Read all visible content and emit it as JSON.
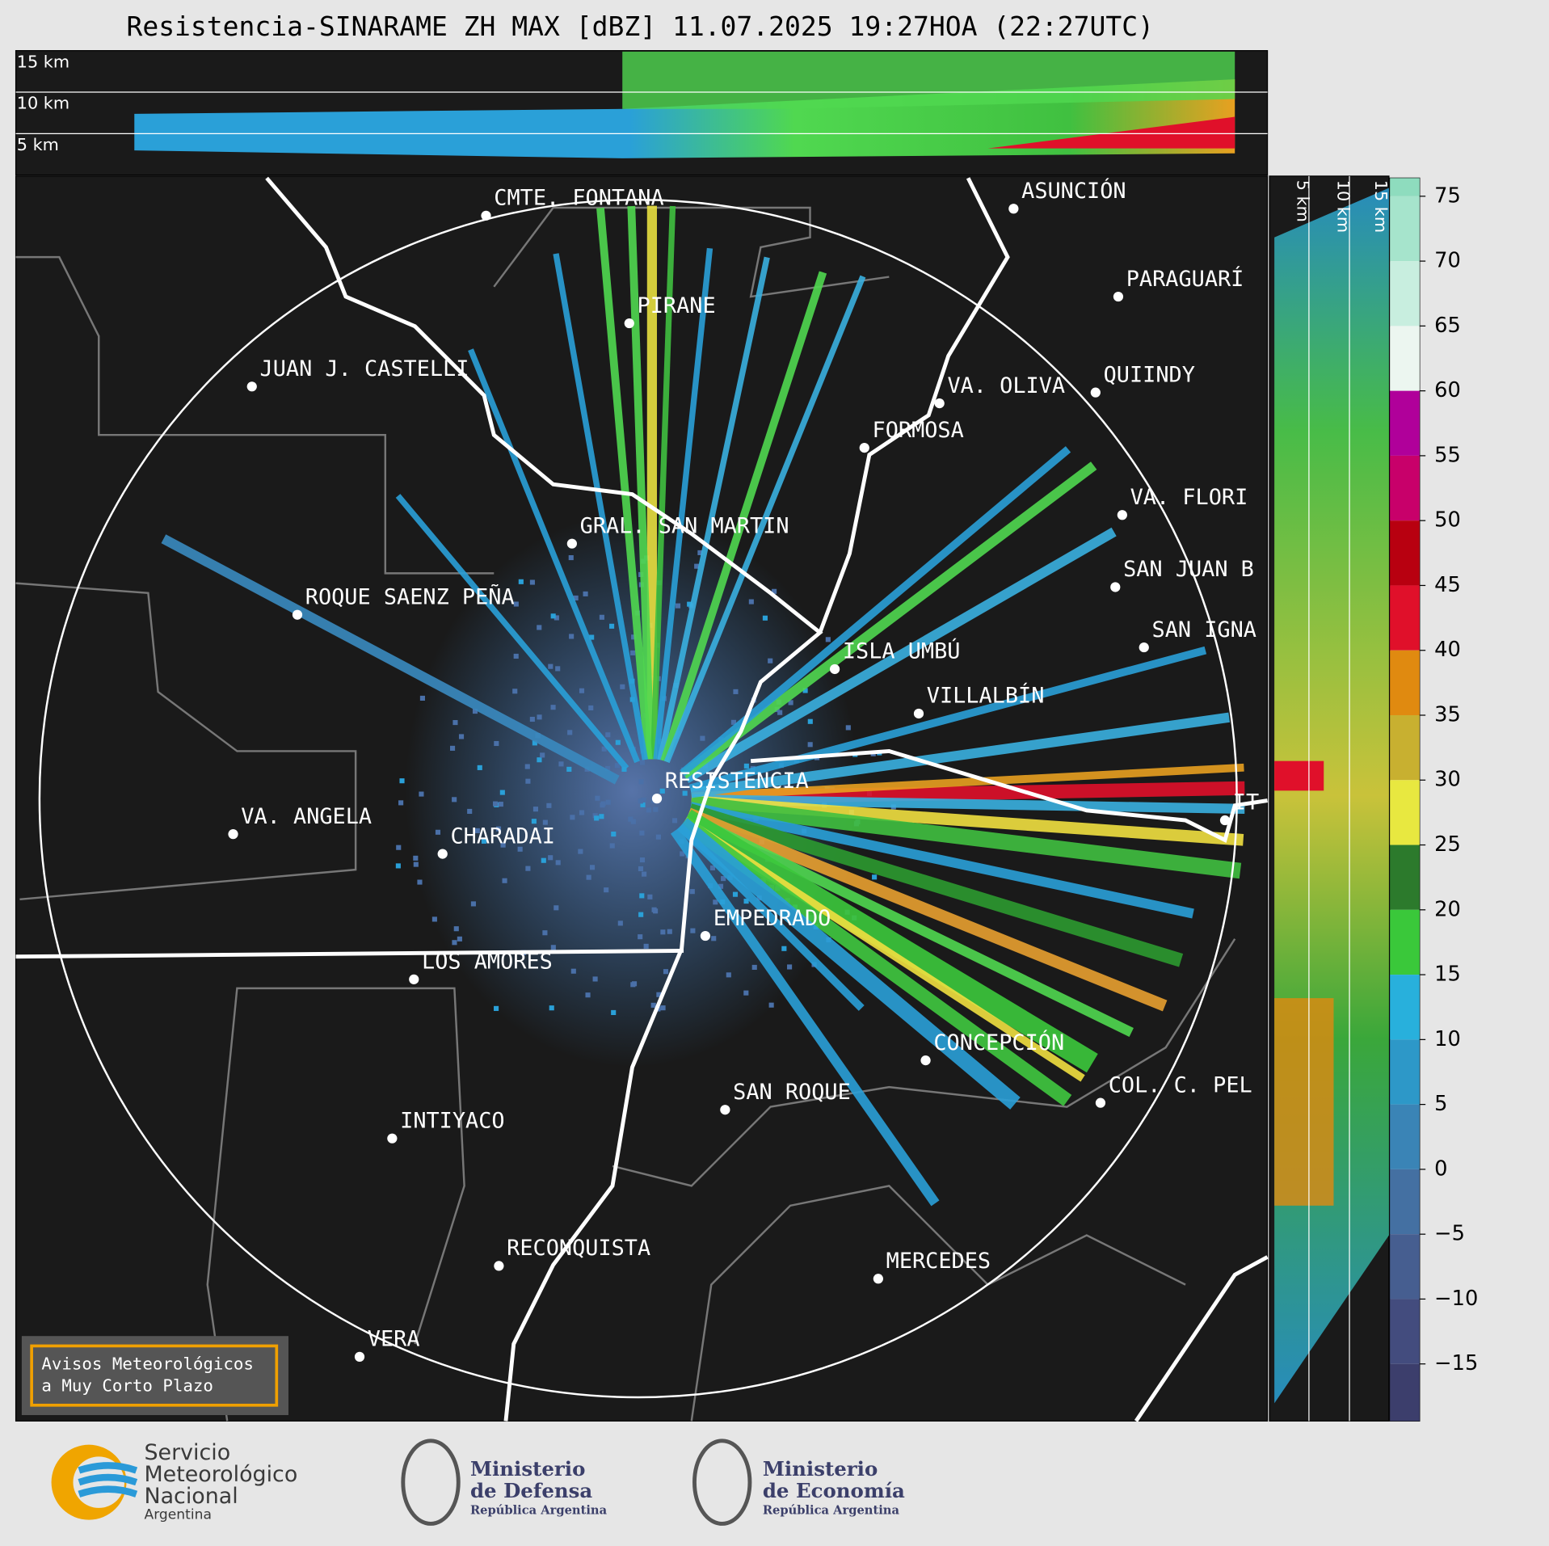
{
  "header": {
    "title": "Resistencia-SINARAME ZH MAX [dBZ] 11.07.2025 19:27HOA (22:27UTC)"
  },
  "height_panel": {
    "top_labels": [
      "15 km",
      "10 km",
      "5 km"
    ],
    "side_labels": [
      "5 km",
      "10 km",
      "15 km"
    ]
  },
  "cities": [
    "CMTE. FONTANA",
    "PIRANE",
    "JUAN J. CASTELLI",
    "ASUNCIÓN",
    "PARAGUARÍ",
    "VA. OLIVA",
    "QUIINDY",
    "FORMOSA",
    "VA. FLORI",
    "GRAL. SAN MARTIN",
    "SAN JUAN B",
    "ROQUE SAENZ PEÑA",
    "SAN IGNA",
    "ISLA UMBÚ",
    "VILLALBÍN",
    "RESISTENCIA",
    "VA. ANGELA",
    "CHARADAI",
    "IT",
    "EMPEDRADO",
    "LOS AMORES",
    "CONCEPCIÓN",
    "COL. C. PEL",
    "SAN ROQUE",
    "INTIYACO",
    "RECONQUISTA",
    "MERCEDES",
    "VERA"
  ],
  "colorbar": {
    "ylim": [
      -19.4,
      76.4
    ],
    "ticks": [
      75,
      70,
      65,
      60,
      55,
      50,
      45,
      40,
      35,
      30,
      25,
      20,
      15,
      10,
      5,
      0,
      {
        "value": -5,
        "label": "−5"
      },
      {
        "value": -10,
        "label": "−10"
      },
      {
        "value": -15,
        "label": "−15"
      }
    ],
    "colors": [
      "#8edcbe",
      "#a6e4cc",
      "#c8eedf",
      "#ecf6f0",
      "#b0009a",
      "#c8006a",
      "#b80010",
      "#e0102a",
      "#e08a10",
      "#c8b030",
      "#e8e840",
      "#2c7a2c",
      "#3ac83a",
      "#28b0dc",
      "#2d98c8",
      "#3a84b6",
      "#4470a2",
      "#465e90",
      "#434c7e",
      "#3c3e6c"
    ]
  },
  "badge": {
    "lines": [
      "Avisos Meteorológicos",
      "a Muy Corto Plazo"
    ]
  },
  "footer": {
    "smn": [
      "Servicio",
      "Meteorológico",
      "Nacional",
      "Argentina"
    ],
    "defensa": [
      "Ministerio",
      "de Defensa",
      "República Argentina"
    ],
    "economia": [
      "Ministerio",
      "de Economía",
      "República Argentina"
    ]
  }
}
